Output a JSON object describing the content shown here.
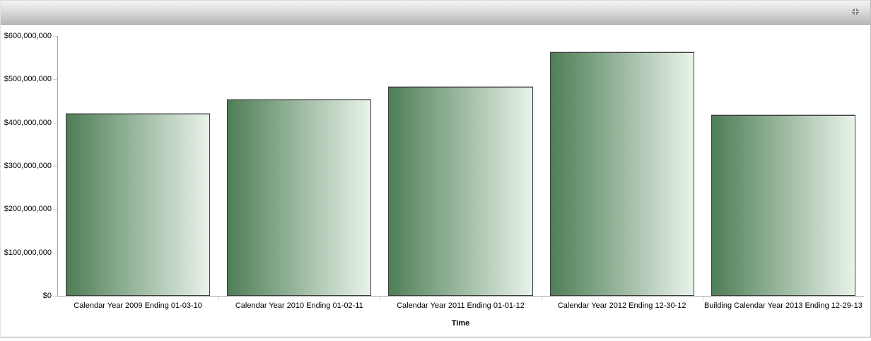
{
  "header": {
    "tool_icon": "collapse-arrows",
    "tool_color": "#828282",
    "gradient_top": "#f3f3f3",
    "gradient_bottom": "#b7b7b7"
  },
  "chart_data": {
    "type": "bar",
    "title": "",
    "xlabel": "Time",
    "ylabel": "",
    "categories": [
      "Calendar Year 2009 Ending 01-03-10",
      "Calendar Year 2010 Ending 01-02-11",
      "Calendar Year 2011 Ending 01-01-12",
      "Calendar Year 2012 Ending 12-30-12",
      "Building Calendar Year 2013 Ending 12-29-13"
    ],
    "values": [
      420000000,
      454000000,
      482000000,
      562000000,
      418000000
    ],
    "ylim": [
      0,
      600000000
    ],
    "ytick_interval": 100000000,
    "ytick_labels": [
      "$0",
      "$100,000,000",
      "$200,000,000",
      "$300,000,000",
      "$400,000,000",
      "$500,000,000",
      "$600,000,000"
    ],
    "currency_prefix": "$",
    "legend": "none",
    "grid": false,
    "bar_gradient_left": "#4e7e56",
    "bar_gradient_right": "#e9f3ea",
    "bar_border_color": "#3d3d3d",
    "axis_color": "#a3a3a3",
    "tick_color": "#c9d7e4"
  }
}
